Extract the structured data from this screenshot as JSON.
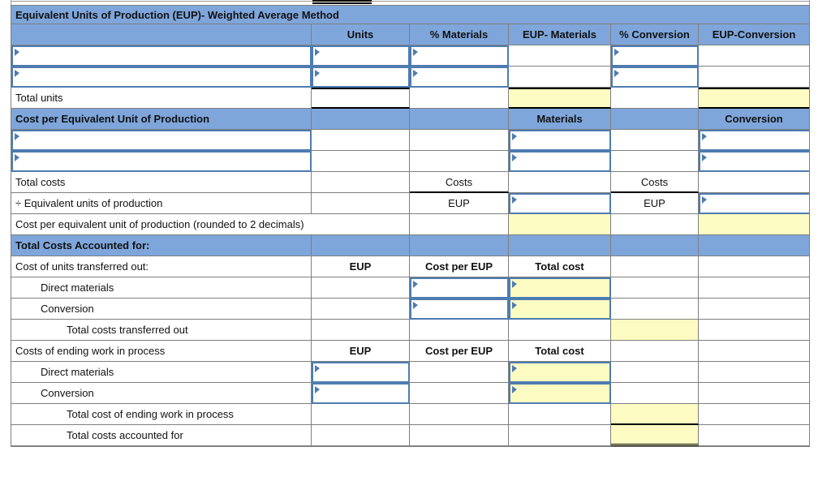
{
  "colors": {
    "header_blue": "#7EA6DB",
    "input_border_blue": "#4E7CB1",
    "highlight_yellow": "#FCFCC2",
    "grid_gray": "#7f7f7f"
  },
  "worksheet": {
    "title": "Equivalent Units of Production (EUP)- Weighted Average Method",
    "col_headers": {
      "units": "Units",
      "pct_materials": "% Materials",
      "eup_materials": "EUP- Materials",
      "pct_conversion": "% Conversion",
      "eup_conversion": "EUP-Conversion"
    },
    "labels": {
      "total_units": "Total units",
      "cost_per_eup_section": "Cost per Equivalent Unit of Production",
      "materials": "Materials",
      "conversion_hdr": "Conversion",
      "total_costs": "Total costs",
      "costs": "Costs",
      "eup": "EUP",
      "divide_eup": "÷ Equivalent units of production",
      "cost_per_eup_rounded": "Cost per equivalent unit of production (rounded to 2 decimals)",
      "total_costs_accounted_section": "Total Costs Accounted for:",
      "units_transferred_out": "Cost of units transferred out:",
      "cost_per_eup": "Cost per EUP",
      "total_cost": "Total cost",
      "direct_materials": "Direct materials",
      "conversion": "Conversion",
      "total_transferred_out": "Total costs transferred out",
      "ending_wip": "Costs of ending work in process",
      "total_ending_wip": "Total cost of ending work in process",
      "total_accounted": "Total costs accounted for"
    }
  }
}
